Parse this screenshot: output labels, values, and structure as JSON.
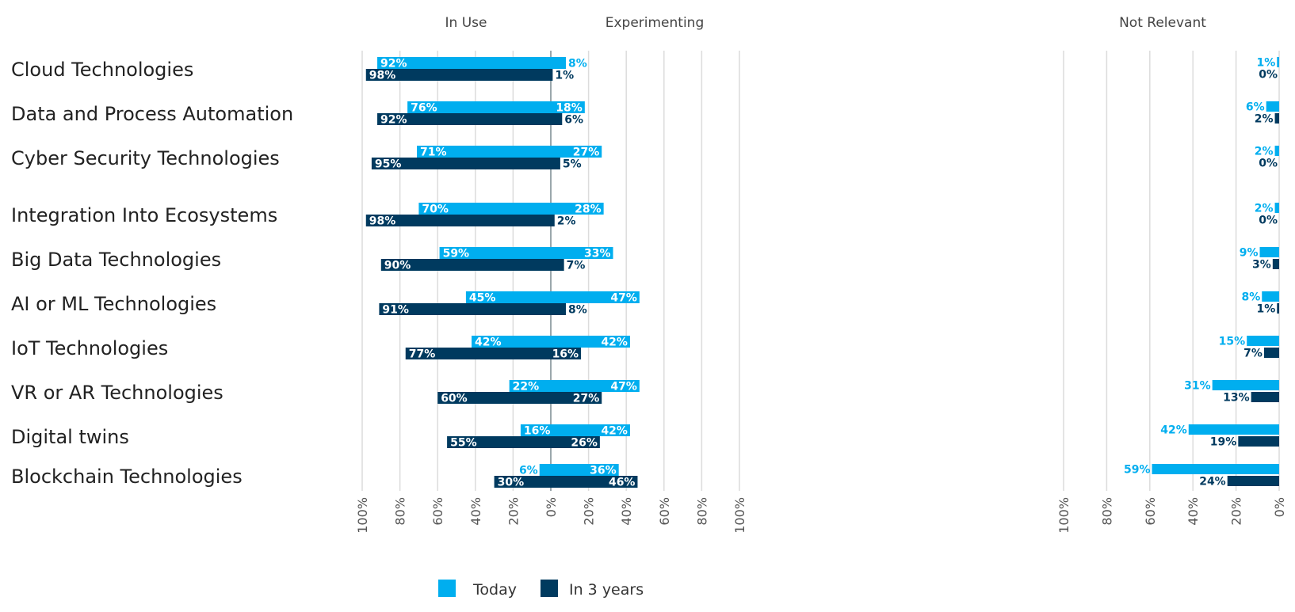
{
  "chart_data": {
    "type": "bar",
    "orientation": "horizontal",
    "layout": "diverging stacked with separate Not Relevant panel",
    "panel_headers": [
      "In Use",
      "Experimenting",
      "Not Relevant"
    ],
    "categories": [
      "Cloud Technologies",
      "Data and Process Automation",
      "Cyber Security Technologies",
      "Integration Into Ecosystems",
      "Big Data Technologies",
      "AI or ML Technologies",
      "IoT Technologies",
      "VR or AR Technologies",
      "Digital twins",
      "Blockchain Technologies"
    ],
    "series": [
      {
        "name": "Today",
        "color": "#00AEEF",
        "in_use": [
          92,
          76,
          71,
          70,
          59,
          45,
          42,
          22,
          16,
          6
        ],
        "experimenting": [
          8,
          18,
          27,
          28,
          33,
          47,
          42,
          47,
          42,
          36
        ],
        "not_relevant": [
          1,
          6,
          2,
          2,
          9,
          8,
          15,
          31,
          42,
          59
        ]
      },
      {
        "name": "In 3 years",
        "color": "#003A5F",
        "in_use": [
          98,
          92,
          95,
          98,
          90,
          91,
          77,
          60,
          55,
          30
        ],
        "experimenting": [
          1,
          6,
          5,
          2,
          7,
          8,
          16,
          27,
          26,
          46
        ],
        "not_relevant": [
          0,
          2,
          0,
          0,
          3,
          1,
          7,
          13,
          19,
          24
        ]
      }
    ],
    "left_axis_ticks": [
      "100%",
      "80%",
      "60%",
      "40%",
      "20%",
      "0%",
      "20%",
      "40%",
      "60%",
      "80%",
      "100%"
    ],
    "right_axis_ticks": [
      "100%",
      "80%",
      "60%",
      "40%",
      "20%",
      "0%"
    ],
    "xlim_in_use": [
      100,
      0
    ],
    "xlim_experimenting": [
      0,
      100
    ],
    "xlim_not_relevant": [
      100,
      0
    ],
    "unit": "%",
    "grid": true,
    "legend_placement": "bottom-center",
    "legend": [
      "Today",
      "In 3 years"
    ]
  }
}
